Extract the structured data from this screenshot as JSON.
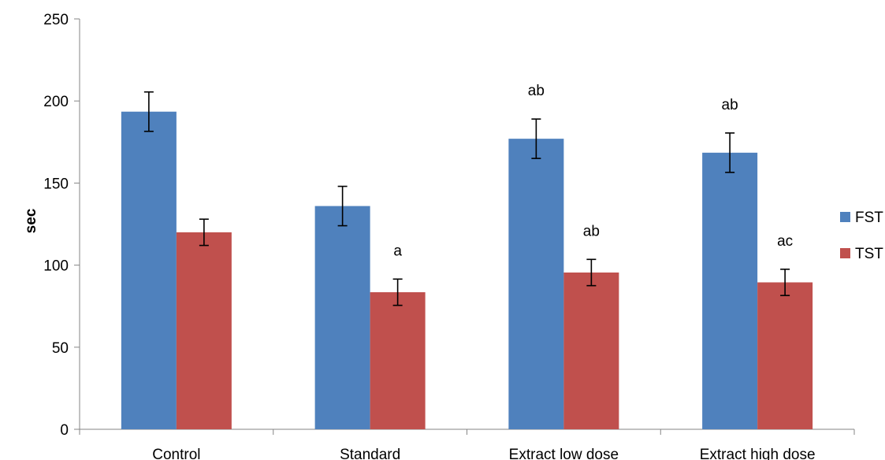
{
  "chart_data": {
    "type": "bar",
    "categories": [
      "Control",
      "Standard",
      "Extract low dose",
      "Extract high dose"
    ],
    "series": [
      {
        "name": "FST",
        "color": "#4F81BD",
        "values": [
          193.5,
          136,
          177,
          168.5
        ],
        "errors": [
          12,
          12,
          12,
          12
        ],
        "annotations": [
          "",
          "",
          "ab",
          "ab"
        ]
      },
      {
        "name": "TST",
        "color": "#C0504D",
        "values": [
          120,
          83.5,
          95.5,
          89.5
        ],
        "errors": [
          8,
          8,
          8,
          8
        ],
        "annotations": [
          "",
          "a",
          "ab",
          "ac"
        ]
      }
    ],
    "xlabel": "",
    "ylabel": "sec",
    "ylim": [
      0,
      250
    ],
    "yticks": [
      0,
      50,
      100,
      150,
      200,
      250
    ],
    "grid": false,
    "legend_position": "right"
  }
}
